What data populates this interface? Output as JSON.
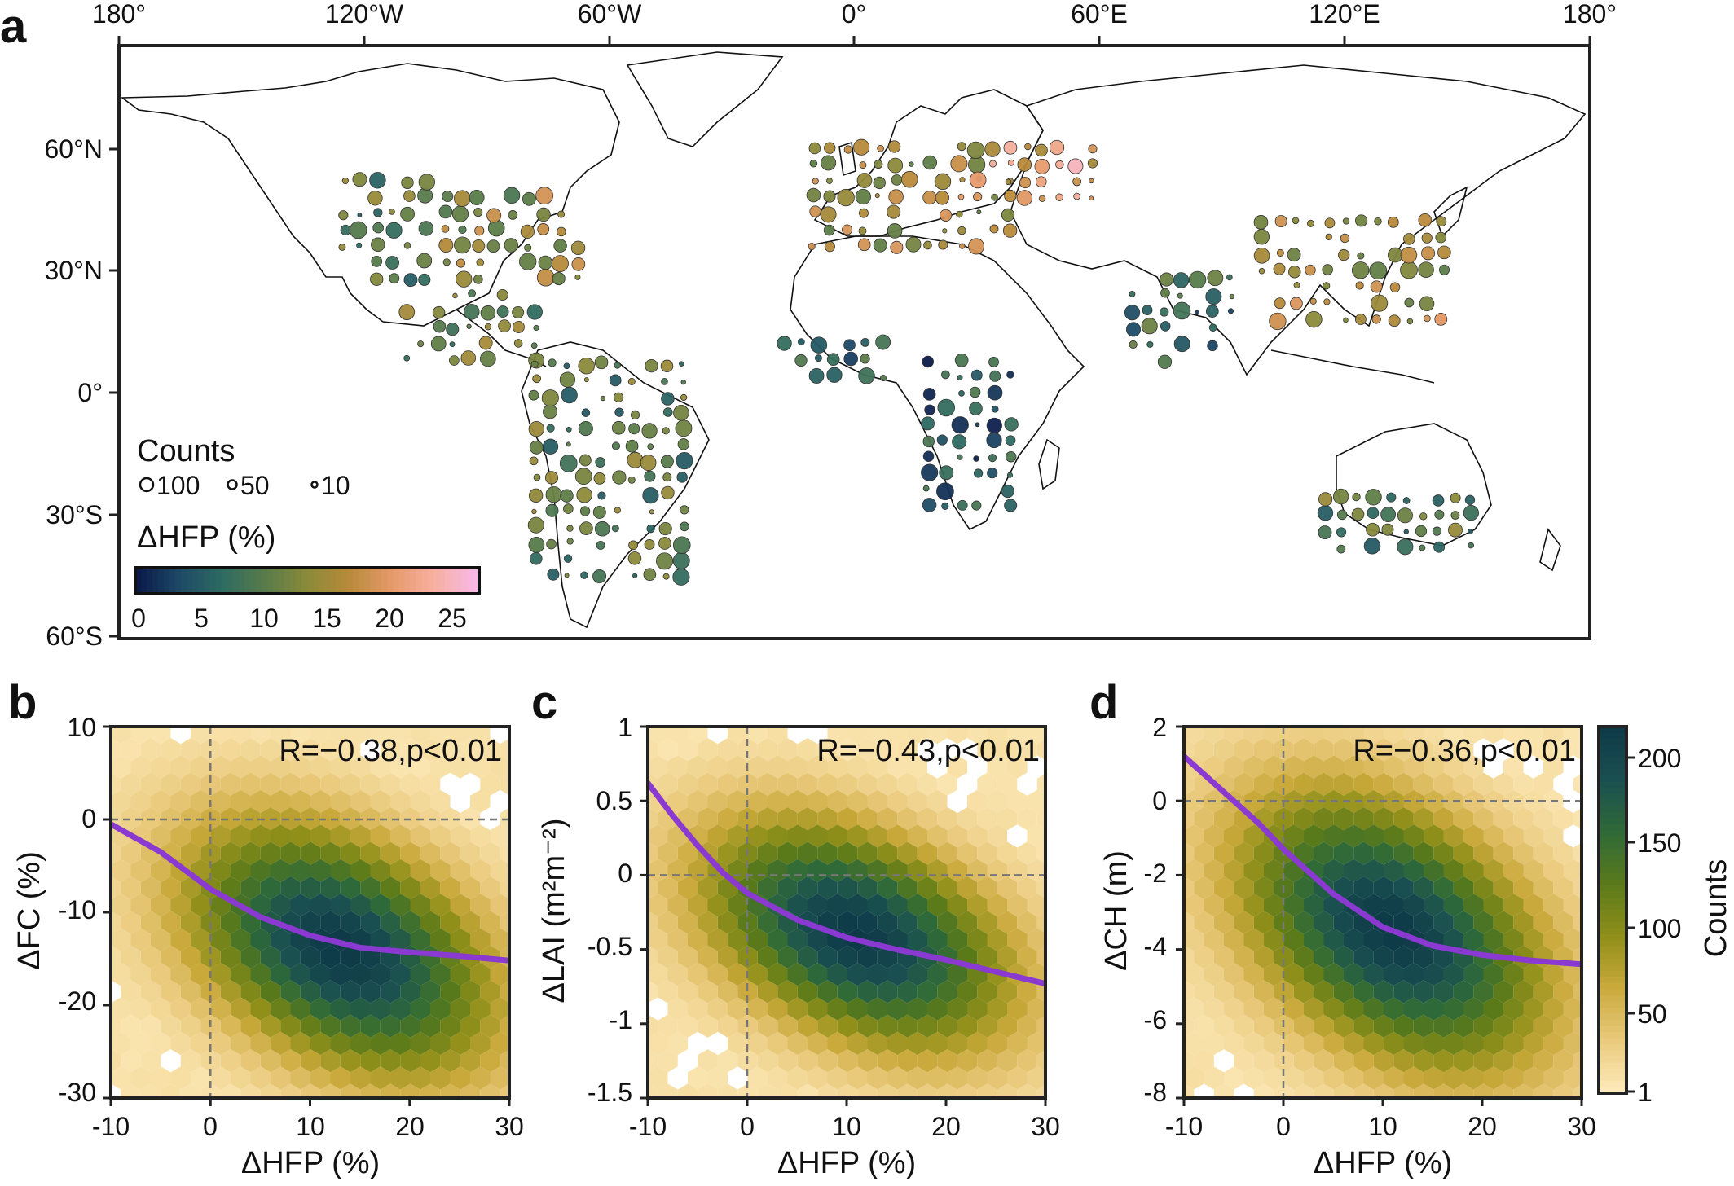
{
  "figure": {
    "panel_letters": [
      "a",
      "b",
      "c",
      "d"
    ]
  },
  "map": {
    "lon_ticks": [
      "180°",
      "120°W",
      "60°W",
      "0°",
      "60°E",
      "120°E",
      "180°"
    ],
    "lat_ticks": [
      "60°N",
      "30°N",
      "0°",
      "30°S",
      "60°S"
    ],
    "legend_counts_title": "Counts",
    "legend_counts_items": [
      "100",
      "50",
      "10"
    ],
    "legend_color_title": "ΔHFP (%)",
    "legend_color_ticks": [
      "0",
      "5",
      "10",
      "15",
      "20",
      "25"
    ]
  },
  "panels": [
    {
      "letter": "b",
      "stat": "R=−0.38,p<0.01",
      "xlabel": "ΔHFP (%)",
      "ylabel": "ΔFC (%)",
      "xticks": [
        "-10",
        "0",
        "10",
        "20",
        "30"
      ],
      "yticks": [
        "10",
        "0",
        "-10",
        "-20",
        "-30"
      ]
    },
    {
      "letter": "c",
      "stat": "R=−0.43,p<0.01",
      "xlabel": "ΔHFP (%)",
      "ylabel": "ΔLAI (m²m⁻²)",
      "xticks": [
        "-10",
        "0",
        "10",
        "20",
        "30"
      ],
      "yticks": [
        "1",
        "0.5",
        "0",
        "-0.5",
        "-1",
        "-1.5"
      ]
    },
    {
      "letter": "d",
      "stat": "R=−0.36,p<0.01",
      "xlabel": "ΔHFP (%)",
      "ylabel": "ΔCH (m)",
      "xticks": [
        "-10",
        "0",
        "10",
        "20",
        "30"
      ],
      "yticks": [
        "2",
        "0",
        "-2",
        "-4",
        "-6",
        "-8"
      ]
    }
  ],
  "colorbar": {
    "label": "Counts",
    "ticks": [
      "200",
      "150",
      "100",
      "50",
      "1"
    ]
  },
  "colors": {
    "hfp_colormap": [
      "#0b1a4a",
      "#1d4a66",
      "#2e6b62",
      "#587c4a",
      "#8a8a3a",
      "#b88a3a",
      "#e69a6a",
      "#f7b0a0",
      "#f7b8e8"
    ],
    "counts_colormap": [
      "#fde9b8",
      "#e9c97a",
      "#c9a93a",
      "#8f8f1a",
      "#5a7a1a",
      "#2f6a38",
      "#1a5050",
      "#0e3a48"
    ],
    "fit_line": "#8a3ad0"
  },
  "chart_data": [
    {
      "type": "scatter",
      "panel": "a",
      "x_axis": "longitude",
      "y_axis": "latitude",
      "xlim": [
        -180,
        180
      ],
      "ylim": [
        -60,
        85
      ],
      "size_legend": {
        "title": "Counts",
        "values": [
          100,
          50,
          10
        ]
      },
      "color_legend": {
        "title": "ΔHFP (%)",
        "range": [
          0,
          27
        ]
      },
      "clusters": [
        {
          "region": "eastern USA",
          "lon": [
            -100,
            -65
          ],
          "lat": [
            28,
            48
          ],
          "dhfp": 14
        },
        {
          "region": "western North America",
          "lon": [
            -125,
            -105
          ],
          "lat": [
            28,
            52
          ],
          "dhfp": 10
        },
        {
          "region": "Central America",
          "lon": [
            -110,
            -78
          ],
          "lat": [
            8,
            26
          ],
          "dhfp": 11
        },
        {
          "region": "South America",
          "lon": [
            -78,
            -40
          ],
          "lat": [
            -45,
            8
          ],
          "dhfp": 10
        },
        {
          "region": "Europe",
          "lon": [
            -10,
            40
          ],
          "lat": [
            36,
            62
          ],
          "dhfp": 15
        },
        {
          "region": "European Russia",
          "lon": [
            30,
            60
          ],
          "lat": [
            48,
            62
          ],
          "dhfp": 20
        },
        {
          "region": "West Africa",
          "lon": [
            -17,
            10
          ],
          "lat": [
            4,
            14
          ],
          "dhfp": 6
        },
        {
          "region": "East and Southern Africa",
          "lon": [
            18,
            40
          ],
          "lat": [
            -28,
            8
          ],
          "dhfp": 5
        },
        {
          "region": "South Asia",
          "lon": [
            68,
            92
          ],
          "lat": [
            8,
            30
          ],
          "dhfp": 7
        },
        {
          "region": "East Asia",
          "lon": [
            100,
            145
          ],
          "lat": [
            18,
            45
          ],
          "dhfp": 15
        },
        {
          "region": "Australia",
          "lon": [
            115,
            152
          ],
          "lat": [
            -38,
            -25
          ],
          "dhfp": 10
        }
      ]
    },
    {
      "type": "heatmap",
      "panel": "b",
      "xlabel": "ΔHFP (%)",
      "ylabel": "ΔFC (%)",
      "xlim": [
        -10,
        30
      ],
      "ylim": [
        -30,
        10
      ],
      "density": {
        "center": [
          13,
          -14
        ],
        "sd": [
          9,
          8
        ],
        "max_count": 210
      },
      "fit_line": {
        "x": [
          -10,
          -5,
          0,
          5,
          10,
          15,
          20,
          25,
          30
        ],
        "y": [
          -0.5,
          -3.5,
          -7.5,
          -10.5,
          -12.5,
          -13.8,
          -14.3,
          -14.7,
          -15.2
        ]
      },
      "correlation": {
        "R": -0.38,
        "p": "<0.01"
      }
    },
    {
      "type": "heatmap",
      "panel": "c",
      "xlabel": "ΔHFP (%)",
      "ylabel": "ΔLAI (m²m⁻²)",
      "xlim": [
        -10,
        30
      ],
      "ylim": [
        -1.5,
        1
      ],
      "density": {
        "center": [
          11,
          -0.4
        ],
        "sd": [
          9,
          0.45
        ],
        "max_count": 210
      },
      "fit_line": {
        "x": [
          -10,
          -7.5,
          -5,
          -2.5,
          0,
          5,
          10,
          15,
          20,
          25,
          30
        ],
        "y": [
          0.62,
          0.4,
          0.2,
          0.02,
          -0.12,
          -0.3,
          -0.42,
          -0.5,
          -0.57,
          -0.65,
          -0.73
        ]
      },
      "correlation": {
        "R": -0.43,
        "p": "<0.01"
      }
    },
    {
      "type": "heatmap",
      "panel": "d",
      "xlabel": "ΔHFP (%)",
      "ylabel": "ΔCH (m)",
      "xlim": [
        -10,
        30
      ],
      "ylim": [
        -8,
        2
      ],
      "density": {
        "center": [
          11,
          -3.5
        ],
        "sd": [
          9,
          2.2
        ],
        "max_count": 210
      },
      "fit_line": {
        "x": [
          -10,
          -7.5,
          -5,
          -2.5,
          0,
          5,
          10,
          15,
          20,
          25,
          30
        ],
        "y": [
          1.2,
          0.6,
          0.0,
          -0.6,
          -1.3,
          -2.5,
          -3.4,
          -3.9,
          -4.15,
          -4.3,
          -4.4
        ]
      },
      "correlation": {
        "R": -0.36,
        "p": "<0.01"
      }
    },
    {
      "type": "colorbar",
      "label": "Counts",
      "range": [
        1,
        215
      ],
      "ticks": [
        1,
        50,
        100,
        150,
        200
      ]
    }
  ]
}
